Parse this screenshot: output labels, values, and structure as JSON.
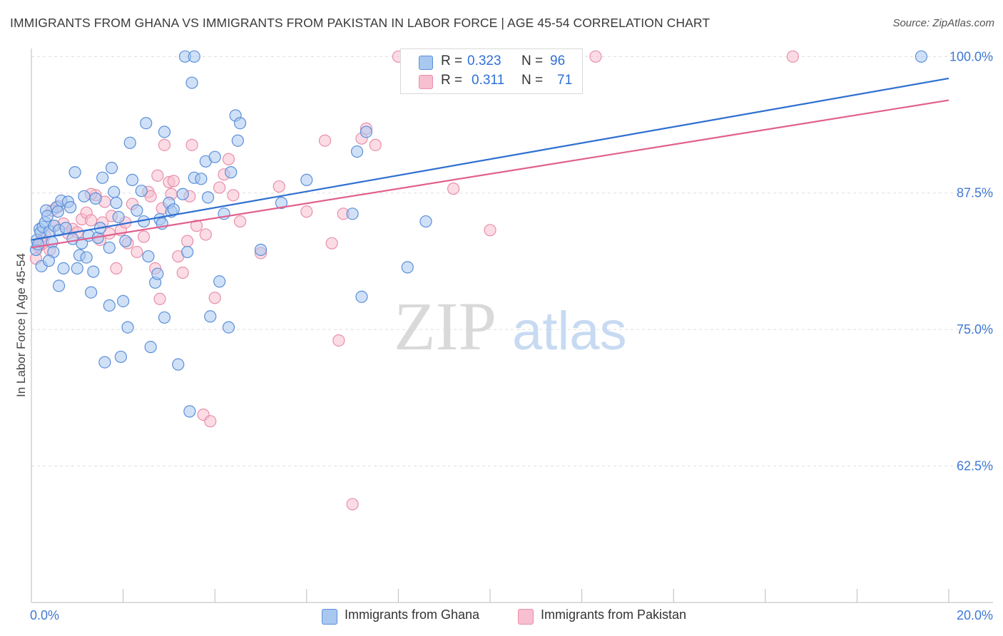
{
  "title": "IMMIGRANTS FROM GHANA VS IMMIGRANTS FROM PAKISTAN IN LABOR FORCE | AGE 45-54 CORRELATION CHART",
  "source": "Source: ZipAtlas.com",
  "watermark": {
    "zip": "ZIP",
    "atlas": "atlas"
  },
  "legend": {
    "ghana": {
      "r_label": "R =",
      "r_value": "0.323",
      "n_label": "N =",
      "n_value": "96"
    },
    "pakistan": {
      "r_label": "R =",
      "r_value": "0.311",
      "n_label": "N =",
      "n_value": "71"
    }
  },
  "bottom_legend": {
    "ghana": "Immigrants from Ghana",
    "pakistan": "Immigrants from Pakistan"
  },
  "colors": {
    "ghana_fill": "#a9c8f0",
    "ghana_stroke": "#5b8fd9",
    "ghana_line": "#2e6fd0",
    "pakistan_fill": "#f7bfd0",
    "pakistan_stroke": "#e88fab",
    "pakistan_line": "#e0608e",
    "tick_label": "#3f78d4",
    "grid": "#dddddd"
  },
  "chart_data": {
    "type": "scatter",
    "title": "IMMIGRANTS FROM GHANA VS IMMIGRANTS FROM PAKISTAN IN LABOR FORCE | AGE 45-54 CORRELATION CHART",
    "xlabel": "",
    "ylabel": "In Labor Force | Age 45-54",
    "xlim": [
      0,
      20
    ],
    "ylim": [
      50,
      101
    ],
    "x_tick_labels": [
      "0.0%",
      "20.0%"
    ],
    "y_ticks": [
      62.5,
      75.0,
      87.5,
      100.0
    ],
    "y_tick_labels": [
      "62.5%",
      "75.0%",
      "87.5%",
      "100.0%"
    ],
    "series": [
      {
        "name": "Immigrants from Ghana",
        "trend": [
          [
            0,
            83.2
          ],
          [
            20,
            98.0
          ]
        ],
        "points": [
          [
            0.1,
            82.3
          ],
          [
            0.12,
            83.2
          ],
          [
            0.15,
            82.8
          ],
          [
            0.18,
            84.2
          ],
          [
            0.2,
            83.9
          ],
          [
            0.22,
            80.8
          ],
          [
            0.25,
            84.4
          ],
          [
            0.3,
            84.8
          ],
          [
            0.32,
            85.9
          ],
          [
            0.35,
            85.4
          ],
          [
            0.4,
            84.0
          ],
          [
            0.45,
            83.0
          ],
          [
            0.48,
            82.1
          ],
          [
            0.5,
            84.5
          ],
          [
            0.55,
            86.2
          ],
          [
            0.58,
            85.8
          ],
          [
            0.6,
            84.1
          ],
          [
            0.65,
            86.8
          ],
          [
            0.7,
            80.6
          ],
          [
            0.75,
            84.3
          ],
          [
            0.8,
            86.7
          ],
          [
            0.85,
            86.2
          ],
          [
            0.9,
            83.3
          ],
          [
            0.95,
            89.4
          ],
          [
            1.0,
            80.6
          ],
          [
            1.05,
            81.8
          ],
          [
            1.1,
            82.9
          ],
          [
            1.2,
            81.6
          ],
          [
            1.25,
            83.6
          ],
          [
            1.3,
            78.4
          ],
          [
            1.35,
            80.3
          ],
          [
            1.4,
            87.0
          ],
          [
            1.45,
            83.4
          ],
          [
            1.5,
            84.3
          ],
          [
            1.55,
            88.9
          ],
          [
            1.6,
            72.0
          ],
          [
            1.7,
            82.5
          ],
          [
            1.75,
            89.8
          ],
          [
            1.8,
            87.6
          ],
          [
            1.85,
            86.6
          ],
          [
            1.9,
            85.3
          ],
          [
            1.95,
            72.5
          ],
          [
            2.0,
            77.6
          ],
          [
            2.05,
            83.1
          ],
          [
            2.1,
            75.2
          ],
          [
            2.15,
            92.1
          ],
          [
            2.2,
            88.7
          ],
          [
            2.3,
            85.9
          ],
          [
            2.4,
            87.7
          ],
          [
            2.45,
            84.9
          ],
          [
            2.5,
            93.9
          ],
          [
            2.55,
            81.7
          ],
          [
            2.6,
            73.4
          ],
          [
            2.7,
            79.3
          ],
          [
            2.8,
            85.1
          ],
          [
            2.85,
            84.7
          ],
          [
            2.9,
            93.1
          ],
          [
            3.0,
            86.6
          ],
          [
            3.05,
            85.8
          ],
          [
            3.1,
            86.0
          ],
          [
            3.2,
            71.8
          ],
          [
            3.3,
            87.4
          ],
          [
            3.4,
            82.1
          ],
          [
            3.45,
            67.5
          ],
          [
            3.5,
            97.6
          ],
          [
            3.55,
            88.9
          ],
          [
            3.7,
            88.8
          ],
          [
            3.8,
            90.4
          ],
          [
            3.85,
            87.1
          ],
          [
            3.9,
            76.2
          ],
          [
            4.0,
            90.8
          ],
          [
            4.1,
            79.4
          ],
          [
            4.3,
            75.2
          ],
          [
            4.35,
            89.4
          ],
          [
            4.45,
            94.6
          ],
          [
            4.5,
            92.3
          ],
          [
            4.55,
            93.9
          ],
          [
            5.0,
            82.3
          ],
          [
            5.45,
            86.6
          ],
          [
            6.0,
            88.7
          ],
          [
            7.0,
            85.6
          ],
          [
            7.1,
            91.3
          ],
          [
            7.2,
            78.0
          ],
          [
            7.3,
            93.1
          ],
          [
            8.2,
            80.7
          ],
          [
            8.6,
            84.9
          ],
          [
            1.15,
            87.2
          ],
          [
            2.75,
            80.1
          ],
          [
            4.2,
            85.6
          ],
          [
            0.38,
            81.3
          ],
          [
            0.6,
            79.0
          ],
          [
            3.35,
            100.0
          ],
          [
            3.55,
            100.0
          ],
          [
            19.4,
            100.0
          ],
          [
            1.7,
            77.2
          ],
          [
            2.9,
            76.1
          ]
        ]
      },
      {
        "name": "Immigrants from Pakistan",
        "trend": [
          [
            0,
            82.5
          ],
          [
            20,
            96.0
          ]
        ],
        "points": [
          [
            0.1,
            81.5
          ],
          [
            0.15,
            82.6
          ],
          [
            0.2,
            83.1
          ],
          [
            0.3,
            83.6
          ],
          [
            0.4,
            82.3
          ],
          [
            0.5,
            84.5
          ],
          [
            0.6,
            86.3
          ],
          [
            0.7,
            84.7
          ],
          [
            0.8,
            83.8
          ],
          [
            0.9,
            84.2
          ],
          [
            1.0,
            83.9
          ],
          [
            1.1,
            85.1
          ],
          [
            1.2,
            85.7
          ],
          [
            1.3,
            85.0
          ],
          [
            1.4,
            87.3
          ],
          [
            1.5,
            83.2
          ],
          [
            1.55,
            84.8
          ],
          [
            1.6,
            86.7
          ],
          [
            1.7,
            83.8
          ],
          [
            1.75,
            85.4
          ],
          [
            1.85,
            80.6
          ],
          [
            1.95,
            84.1
          ],
          [
            2.05,
            84.8
          ],
          [
            2.1,
            82.9
          ],
          [
            2.2,
            86.5
          ],
          [
            2.3,
            82.1
          ],
          [
            2.45,
            83.5
          ],
          [
            2.55,
            87.6
          ],
          [
            2.6,
            87.2
          ],
          [
            2.7,
            80.6
          ],
          [
            2.75,
            89.1
          ],
          [
            2.85,
            86.1
          ],
          [
            2.9,
            91.9
          ],
          [
            3.0,
            88.5
          ],
          [
            3.05,
            87.4
          ],
          [
            3.1,
            88.6
          ],
          [
            3.2,
            81.7
          ],
          [
            3.3,
            80.2
          ],
          [
            3.4,
            83.1
          ],
          [
            3.45,
            87.2
          ],
          [
            3.5,
            91.9
          ],
          [
            3.6,
            84.5
          ],
          [
            3.8,
            83.7
          ],
          [
            4.0,
            77.9
          ],
          [
            4.1,
            88.0
          ],
          [
            4.2,
            89.2
          ],
          [
            4.3,
            90.6
          ],
          [
            4.4,
            87.3
          ],
          [
            4.55,
            84.9
          ],
          [
            5.0,
            82.0
          ],
          [
            5.4,
            88.1
          ],
          [
            6.0,
            85.8
          ],
          [
            6.4,
            92.3
          ],
          [
            6.55,
            82.9
          ],
          [
            6.7,
            74.0
          ],
          [
            6.8,
            85.6
          ],
          [
            7.0,
            59.0
          ],
          [
            7.2,
            92.5
          ],
          [
            7.3,
            93.4
          ],
          [
            7.5,
            91.9
          ],
          [
            9.2,
            87.9
          ],
          [
            10.0,
            84.1
          ],
          [
            3.75,
            67.2
          ],
          [
            3.9,
            66.6
          ],
          [
            2.8,
            77.8
          ],
          [
            0.25,
            82.9
          ],
          [
            8.0,
            100.0
          ],
          [
            12.3,
            100.0
          ],
          [
            16.6,
            100.0
          ],
          [
            1.3,
            87.4
          ],
          [
            0.45,
            85.9
          ]
        ]
      }
    ]
  }
}
